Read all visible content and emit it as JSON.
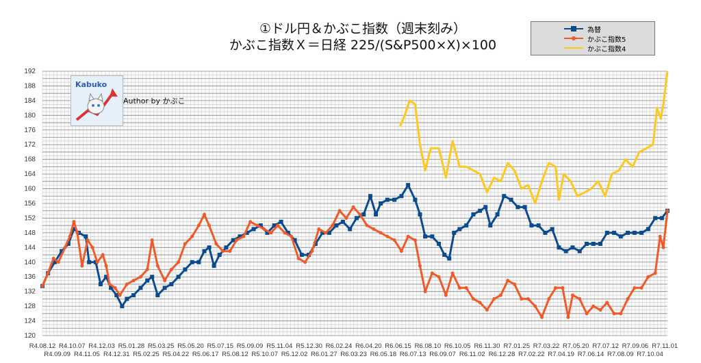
{
  "chart_data": {
    "type": "line",
    "title": [
      "①ドル円＆かぶこ指数（週末刻み）",
      "かぶこ指数Ｘ＝日経 225/(S&P500×X)×100"
    ],
    "xlabel": "",
    "ylabel": "",
    "x_unit": "weeks since R4.08.12",
    "xlim": [
      0,
      168.7
    ],
    "ylim": [
      120,
      192
    ],
    "yticks": [
      120,
      124,
      128,
      132,
      136,
      140,
      144,
      148,
      152,
      156,
      160,
      164,
      168,
      172,
      176,
      180,
      184,
      188,
      192
    ],
    "xtick_labels": [
      "R4.08.12",
      "R4.09.09",
      "R4.10.07",
      "R4.11.05",
      "R4.12.03",
      "R4.12.31",
      "R5.01.28",
      "R5.02.25",
      "R5.03.25",
      "R5.04.22",
      "R5.05.20",
      "R5.06.17",
      "R5.07.15",
      "R5.08.12",
      "R5.09.09",
      "R5.10.07",
      "R5.11.04",
      "R5.12.02",
      "R5.12.30",
      "R6.01.27",
      "R6.02.24",
      "R6.03.23",
      "R6.04.20",
      "R6.05.18",
      "R6.06.15",
      "R6.07.13",
      "R6.08.10",
      "R6.09.07",
      "R6.10.05",
      "R6.11.02",
      "R6.11.30",
      "R6.12.28",
      "R7.01.25",
      "R7.02.22",
      "R7.03.22",
      "R7.04.19",
      "R7.05.20",
      "R7.06.14",
      "R7.07.12",
      "R7.08.09",
      "R7.09.06",
      "R7.10.04",
      "R7.11.01"
    ],
    "grid": true,
    "legend_position": "top-right",
    "series": [
      {
        "name": "為替",
        "color": "#0b4a8c",
        "marker": "square",
        "points": [
          [
            0,
            133.5
          ],
          [
            1.5,
            137
          ],
          [
            3.3,
            140
          ],
          [
            5.2,
            143
          ],
          [
            7,
            145
          ],
          [
            8.5,
            149
          ],
          [
            9.8,
            148
          ],
          [
            11.7,
            147
          ],
          [
            12.6,
            140
          ],
          [
            14.4,
            140
          ],
          [
            15.7,
            134
          ],
          [
            17.2,
            136
          ],
          [
            18.5,
            133
          ],
          [
            20,
            131
          ],
          [
            21.5,
            128
          ],
          [
            22.8,
            130
          ],
          [
            24.6,
            131
          ],
          [
            26.5,
            133
          ],
          [
            28.3,
            135
          ],
          [
            29.6,
            136
          ],
          [
            31.1,
            131
          ],
          [
            33,
            133
          ],
          [
            34.8,
            134
          ],
          [
            36.7,
            136
          ],
          [
            38.5,
            138
          ],
          [
            40.4,
            140
          ],
          [
            42.2,
            140
          ],
          [
            43.7,
            143
          ],
          [
            45,
            144
          ],
          [
            46.3,
            139
          ],
          [
            47.8,
            142
          ],
          [
            49.6,
            144
          ],
          [
            51.5,
            146
          ],
          [
            53.3,
            147
          ],
          [
            55.2,
            148
          ],
          [
            57,
            149
          ],
          [
            58.9,
            150
          ],
          [
            60.7,
            148
          ],
          [
            62.6,
            150
          ],
          [
            64.4,
            151
          ],
          [
            66.3,
            148
          ],
          [
            68.1,
            146
          ],
          [
            70,
            142
          ],
          [
            71.9,
            142
          ],
          [
            73.7,
            145
          ],
          [
            75.6,
            148
          ],
          [
            77.4,
            148
          ],
          [
            79.3,
            150
          ],
          [
            81.1,
            151
          ],
          [
            83,
            149
          ],
          [
            84.8,
            152
          ],
          [
            86.7,
            153
          ],
          [
            88.5,
            158
          ],
          [
            90,
            153
          ],
          [
            91.3,
            156
          ],
          [
            93.1,
            157
          ],
          [
            95,
            157
          ],
          [
            96.9,
            158
          ],
          [
            98.7,
            161
          ],
          [
            100.6,
            157
          ],
          [
            101.9,
            153
          ],
          [
            103.3,
            147
          ],
          [
            105.2,
            147
          ],
          [
            107,
            145
          ],
          [
            108.5,
            142
          ],
          [
            109.8,
            141
          ],
          [
            111.1,
            148
          ],
          [
            112.6,
            149
          ],
          [
            114.4,
            150
          ],
          [
            116.3,
            153
          ],
          [
            118.1,
            154
          ],
          [
            119.6,
            155
          ],
          [
            120.9,
            150
          ],
          [
            122.8,
            153
          ],
          [
            124.6,
            158
          ],
          [
            126.5,
            157
          ],
          [
            128.3,
            155
          ],
          [
            130.2,
            155
          ],
          [
            132,
            150
          ],
          [
            133.9,
            150
          ],
          [
            135.7,
            148
          ],
          [
            137.6,
            149
          ],
          [
            139.4,
            144
          ],
          [
            141.3,
            143
          ],
          [
            143.1,
            144
          ],
          [
            145,
            143
          ],
          [
            146.9,
            145
          ],
          [
            148.7,
            145
          ],
          [
            150.6,
            145
          ],
          [
            152.4,
            148
          ],
          [
            154.3,
            148
          ],
          [
            156.1,
            147
          ],
          [
            158,
            148
          ],
          [
            159.8,
            148
          ],
          [
            161.7,
            148
          ],
          [
            163.5,
            149
          ],
          [
            165.4,
            152
          ],
          [
            167.2,
            152
          ],
          [
            168.7,
            154
          ]
        ]
      },
      {
        "name": "かぶこ指数5",
        "color": "#f05a28",
        "marker": "circle",
        "points": [
          [
            0,
            133.5
          ],
          [
            1.5,
            137
          ],
          [
            3,
            141
          ],
          [
            4.3,
            140
          ],
          [
            6.1,
            144
          ],
          [
            7.4,
            147
          ],
          [
            8.5,
            151
          ],
          [
            9.4,
            148
          ],
          [
            10.7,
            139
          ],
          [
            12.2,
            146
          ],
          [
            13.5,
            144
          ],
          [
            14.8,
            140
          ],
          [
            16.3,
            142
          ],
          [
            17.2,
            139
          ],
          [
            18.1,
            134
          ],
          [
            19.6,
            133
          ],
          [
            20.9,
            131
          ],
          [
            22.8,
            134
          ],
          [
            24.6,
            135
          ],
          [
            26.5,
            136
          ],
          [
            28.3,
            138
          ],
          [
            29.6,
            146
          ],
          [
            31.1,
            139
          ],
          [
            33,
            135
          ],
          [
            34.8,
            138
          ],
          [
            36.7,
            140
          ],
          [
            38.5,
            145
          ],
          [
            40.4,
            147
          ],
          [
            42.2,
            150
          ],
          [
            43.7,
            153
          ],
          [
            45,
            150
          ],
          [
            46.9,
            145
          ],
          [
            48.7,
            143
          ],
          [
            50.6,
            143
          ],
          [
            52.4,
            146
          ],
          [
            54.3,
            147
          ],
          [
            56.1,
            151
          ],
          [
            58,
            150
          ],
          [
            59.8,
            149
          ],
          [
            61.7,
            148
          ],
          [
            63.5,
            150
          ],
          [
            65.4,
            148
          ],
          [
            67.2,
            147
          ],
          [
            69.1,
            141
          ],
          [
            70.9,
            140
          ],
          [
            72.8,
            143
          ],
          [
            74.6,
            149
          ],
          [
            76.5,
            148
          ],
          [
            78.3,
            150
          ],
          [
            80.2,
            154
          ],
          [
            82,
            152
          ],
          [
            83.9,
            155
          ],
          [
            85.7,
            153
          ],
          [
            87.6,
            150
          ],
          [
            89.4,
            149
          ],
          [
            91.3,
            148
          ],
          [
            93.1,
            147
          ],
          [
            95,
            146
          ],
          [
            96.9,
            143
          ],
          [
            98.7,
            147
          ],
          [
            100.6,
            146
          ],
          [
            101.9,
            139
          ],
          [
            103.3,
            132
          ],
          [
            105.2,
            137
          ],
          [
            107,
            136
          ],
          [
            108.9,
            131
          ],
          [
            110.7,
            137
          ],
          [
            112.6,
            133
          ],
          [
            114.4,
            133
          ],
          [
            116.3,
            130
          ],
          [
            118.1,
            129
          ],
          [
            120,
            127
          ],
          [
            121.9,
            130
          ],
          [
            123.7,
            131
          ],
          [
            125.6,
            135
          ],
          [
            127.4,
            134
          ],
          [
            129.3,
            130
          ],
          [
            131.1,
            130
          ],
          [
            133,
            128
          ],
          [
            134.8,
            125
          ],
          [
            136.7,
            130
          ],
          [
            138.5,
            133
          ],
          [
            140.4,
            133
          ],
          [
            141.9,
            125
          ],
          [
            143.1,
            131
          ],
          [
            145,
            130
          ],
          [
            146.9,
            126
          ],
          [
            148.7,
            128
          ],
          [
            150.6,
            127
          ],
          [
            152.4,
            129
          ],
          [
            154.3,
            126
          ],
          [
            156.1,
            126
          ],
          [
            158,
            130
          ],
          [
            159.8,
            133
          ],
          [
            161.7,
            133
          ],
          [
            163.5,
            136
          ],
          [
            165.4,
            137
          ],
          [
            166.7,
            147
          ],
          [
            167.6,
            144
          ],
          [
            168.7,
            154
          ]
        ]
      },
      {
        "name": "かぶこ指数4",
        "color": "#ffc81e",
        "marker": "none",
        "points": [
          [
            96.5,
            177
          ],
          [
            97.8,
            180
          ],
          [
            99.1,
            184
          ],
          [
            100.6,
            183
          ],
          [
            101.9,
            172
          ],
          [
            103.3,
            165
          ],
          [
            104.8,
            171
          ],
          [
            107,
            171
          ],
          [
            108.9,
            163
          ],
          [
            110.7,
            173
          ],
          [
            112.6,
            166
          ],
          [
            114.4,
            166
          ],
          [
            116.3,
            165
          ],
          [
            118.1,
            164
          ],
          [
            120,
            159
          ],
          [
            121.9,
            163
          ],
          [
            123.7,
            162
          ],
          [
            125.6,
            167
          ],
          [
            127.4,
            165
          ],
          [
            129.3,
            160
          ],
          [
            131.1,
            161
          ],
          [
            133,
            156
          ],
          [
            134.8,
            162
          ],
          [
            136.7,
            167
          ],
          [
            138.5,
            166
          ],
          [
            139.4,
            157
          ],
          [
            140.7,
            164
          ],
          [
            142.6,
            162
          ],
          [
            144.4,
            158
          ],
          [
            146.3,
            159
          ],
          [
            148.1,
            160
          ],
          [
            150,
            162
          ],
          [
            151.9,
            158
          ],
          [
            153.7,
            164
          ],
          [
            155.6,
            165
          ],
          [
            157.4,
            168
          ],
          [
            159.3,
            166
          ],
          [
            161.1,
            170
          ],
          [
            163,
            171
          ],
          [
            164.8,
            172
          ],
          [
            165.9,
            182
          ],
          [
            166.9,
            179
          ],
          [
            167.6,
            183
          ],
          [
            168.7,
            192
          ]
        ]
      }
    ]
  },
  "logo_text": "Kabuko",
  "author": "Author by かぶこ"
}
